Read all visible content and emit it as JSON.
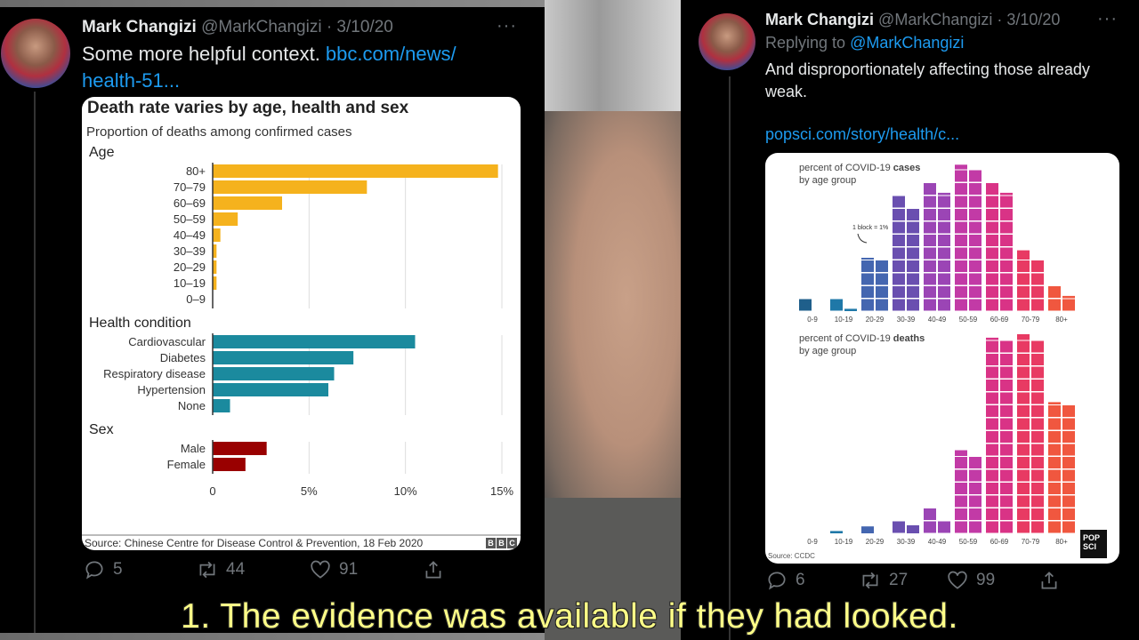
{
  "caption": "1. The evidence was available if they had looked.",
  "tweets": [
    {
      "name": "Mark Changizi",
      "handle": "@MarkChangizi",
      "date": "· 3/10/20",
      "text": "Some more helpful context. ",
      "link": "bbc.com/news/ health-51...",
      "replies": "5",
      "retweets": "44",
      "likes": "91"
    },
    {
      "name": "Mark Changizi",
      "handle": "@MarkChangizi",
      "date": "· 3/10/20",
      "replying_prefix": "Replying to ",
      "replying_to": "@MarkChangizi",
      "text": "And disproportionately affecting those already weak.",
      "link": "popsci.com/story/health/c...",
      "replies": "6",
      "retweets": "27",
      "likes": "99"
    }
  ],
  "chart_data": [
    {
      "type": "bar",
      "orientation": "horizontal",
      "title": "Death rate varies by age, health and sex",
      "subtitle": "Proportion of deaths among confirmed cases",
      "xlim": [
        0,
        15
      ],
      "xticks": [
        "0",
        "5%",
        "10%",
        "15%"
      ],
      "grid": true,
      "groups": [
        {
          "name": "Age",
          "color": "#f5b21d",
          "categories": [
            "80+",
            "70–79",
            "60–69",
            "50–59",
            "40–49",
            "30–39",
            "20–29",
            "10–19",
            "0–9"
          ],
          "values": [
            14.8,
            8.0,
            3.6,
            1.3,
            0.4,
            0.2,
            0.2,
            0.2,
            0
          ]
        },
        {
          "name": "Health condition",
          "color": "#1b8a9e",
          "categories": [
            "Cardiovascular",
            "Diabetes",
            "Respiratory disease",
            "Hypertension",
            "None"
          ],
          "values": [
            10.5,
            7.3,
            6.3,
            6.0,
            0.9
          ]
        },
        {
          "name": "Sex",
          "color": "#990000",
          "categories": [
            "Male",
            "Female"
          ],
          "values": [
            2.8,
            1.7
          ]
        }
      ],
      "source": "Source: Chinese Centre for Disease Control & Prevention, 18 Feb 2020",
      "logo": "BBC"
    },
    {
      "type": "bar",
      "style": "waffle",
      "title_prefix": "percent of COVID-19 ",
      "title_bold": "cases",
      "title_suffix": "by age group",
      "annotation": "1 block = 1%",
      "categories": [
        "0-9",
        "10-19",
        "20-29",
        "30-39",
        "40-49",
        "50-59",
        "60-69",
        "70-79",
        "80+"
      ],
      "values": [
        1,
        1.2,
        8.1,
        17,
        19.2,
        22.4,
        19.2,
        8.8,
        3.2
      ],
      "colors": [
        "#1f5f8b",
        "#1f78a8",
        "#4466b0",
        "#6a4fb0",
        "#9b45b5",
        "#c23aa6",
        "#d93386",
        "#e83a63",
        "#f0573f"
      ]
    },
    {
      "type": "bar",
      "style": "waffle",
      "title_prefix": "percent of COVID-19 ",
      "title_bold": "deaths",
      "title_suffix": "by age group",
      "categories": [
        "0-9",
        "10-19",
        "20-29",
        "30-39",
        "40-49",
        "50-59",
        "60-69",
        "70-79",
        "80+"
      ],
      "values": [
        0,
        0.2,
        0.6,
        1.7,
        3,
        12.5,
        30.2,
        30.5,
        20.2
      ],
      "source": "Source: CCDC",
      "logo": "POP SCI"
    }
  ]
}
